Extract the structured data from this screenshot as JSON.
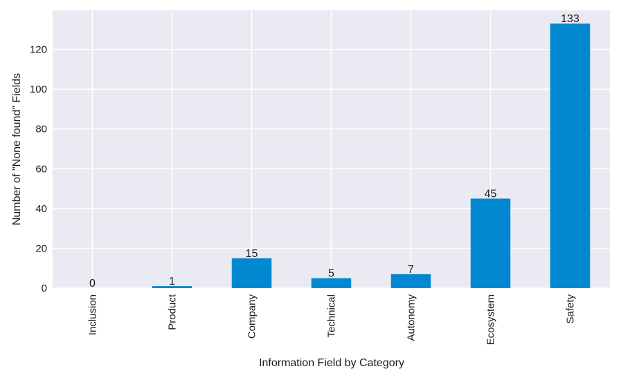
{
  "chart_data": {
    "type": "bar",
    "title": "",
    "xlabel": "Information Field by Category",
    "ylabel": "Number of \"None found\" Fields",
    "categories": [
      "Inclusion",
      "Product",
      "Company",
      "Technical",
      "Autonomy",
      "Ecosystem",
      "Safety"
    ],
    "values": [
      0,
      1,
      15,
      5,
      7,
      45,
      133
    ],
    "ylim": [
      0,
      139.65
    ],
    "yticks": [
      0,
      20,
      40,
      60,
      80,
      100,
      120
    ],
    "grid": true,
    "legend": "none",
    "data_labels": true,
    "colors": {
      "bar": "#0288d1",
      "plot_background": "#eaeaf2",
      "grid": "#ffffff"
    }
  }
}
